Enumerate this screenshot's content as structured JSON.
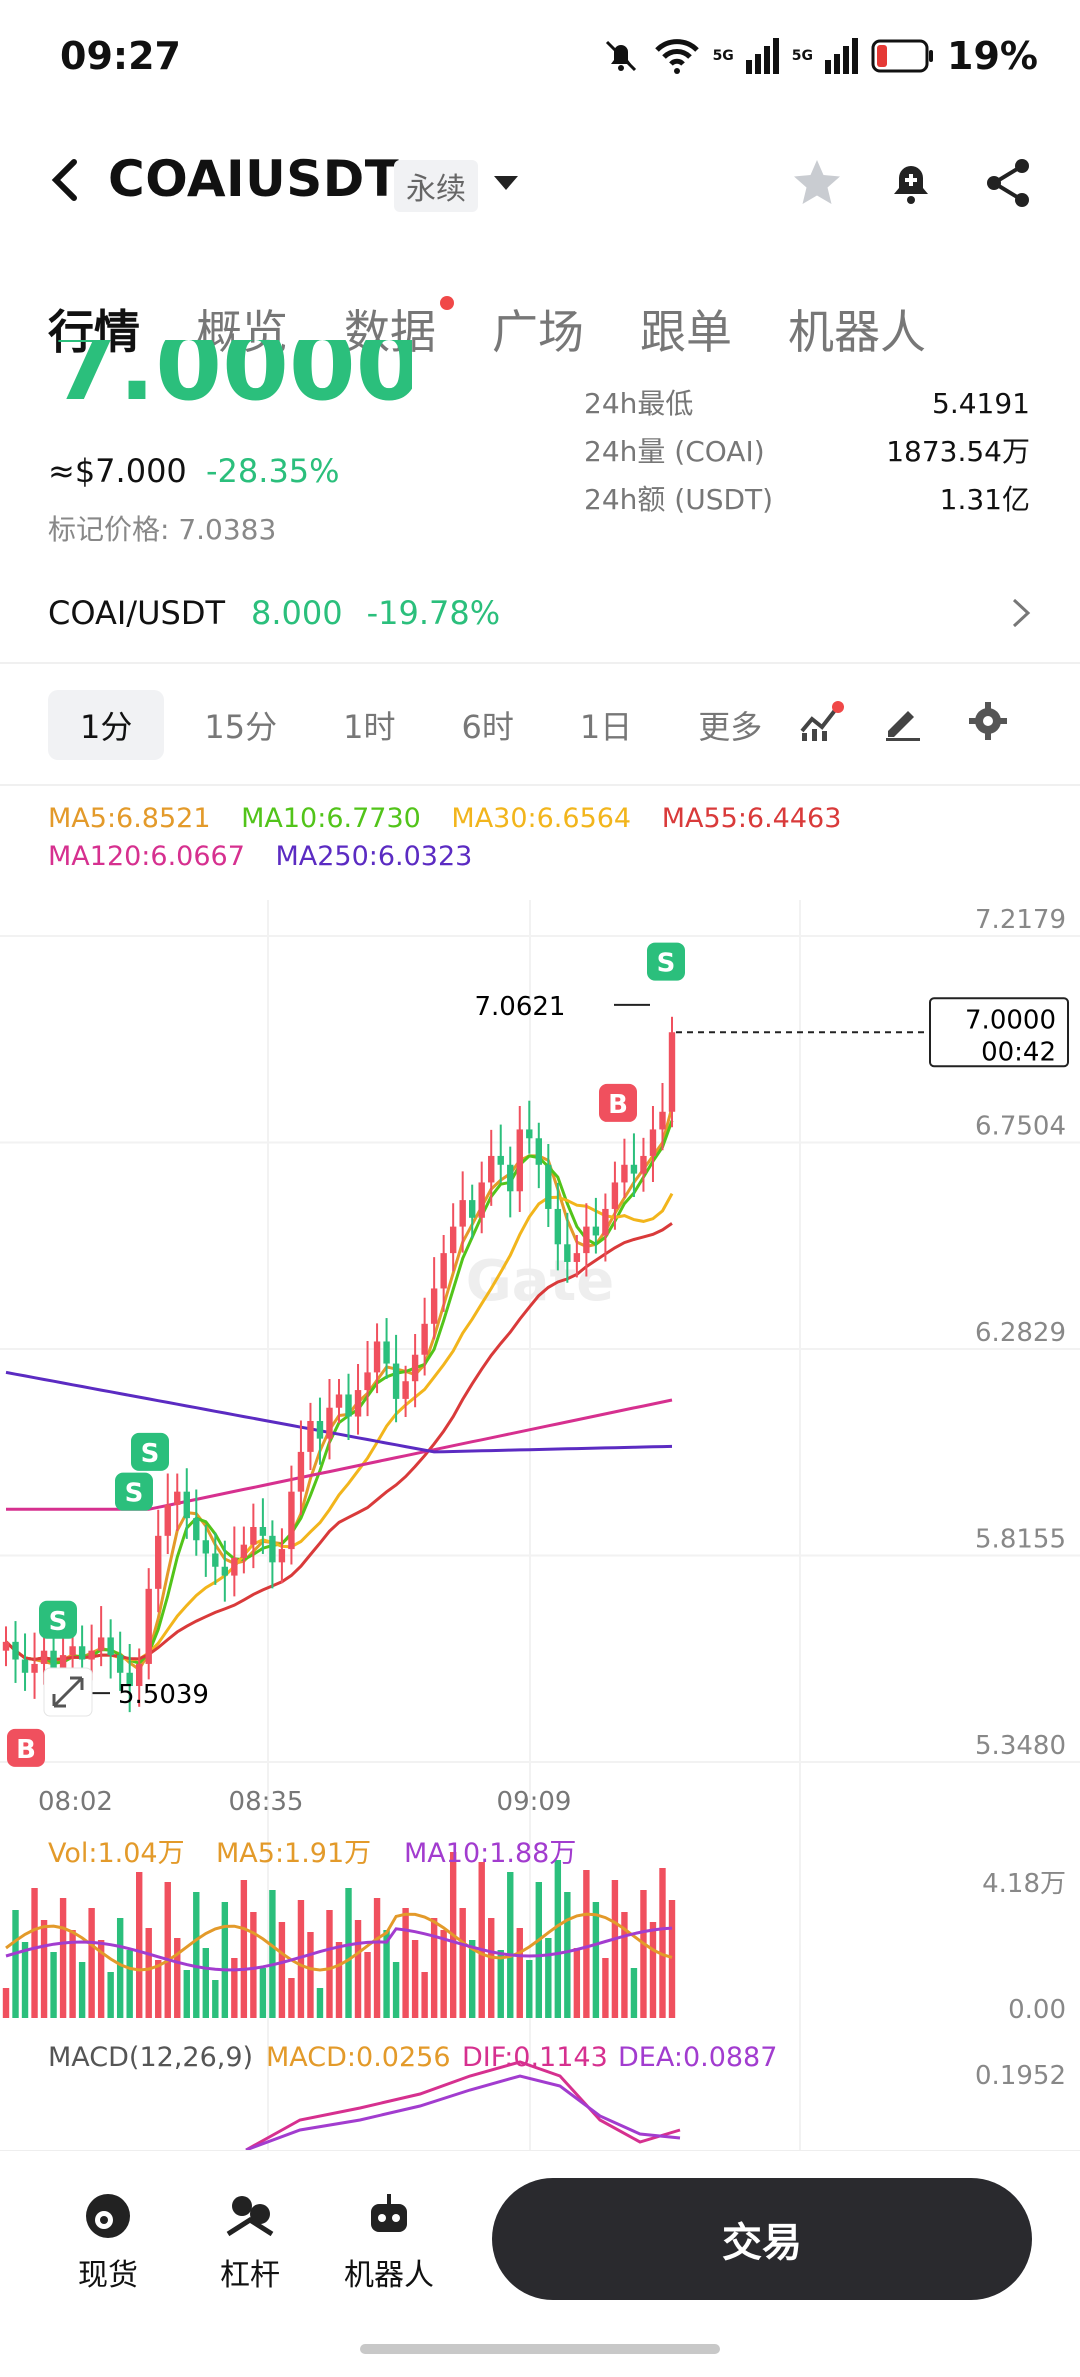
{
  "status": {
    "time": "09:27",
    "battery": "19%",
    "net1": "5G",
    "net2": "5G"
  },
  "header": {
    "title": "COAIUSDT",
    "tag": "永续"
  },
  "tabs": [
    {
      "label": "行情",
      "active": true
    },
    {
      "label": "概览"
    },
    {
      "label": "数据",
      "dot": true
    },
    {
      "label": "广场"
    },
    {
      "label": "跟单"
    },
    {
      "label": "机器人"
    }
  ],
  "price": {
    "last": "7.0000",
    "usd": "≈$7.000",
    "change": "-28.35%",
    "mark_label": "标记价格: 7.0383"
  },
  "stats": [
    {
      "label": "24h最低",
      "value": "5.4191"
    },
    {
      "label": "24h量 (COAI)",
      "value": "1873.54万"
    },
    {
      "label": "24h额 (USDT)",
      "value": "1.31亿"
    }
  ],
  "spot": {
    "pair": "COAI/USDT",
    "price": "8.000",
    "change": "-19.78%"
  },
  "timeframes": {
    "selected": "1分",
    "items": [
      "15分",
      "1时",
      "6时",
      "1日",
      "更多"
    ]
  },
  "ma_legend": [
    {
      "label": "MA5:6.8521",
      "color": "#e39a2a"
    },
    {
      "label": "MA10:6.7730",
      "color": "#52c41a"
    },
    {
      "label": "MA30:6.6564",
      "color": "#f2b51c"
    },
    {
      "label": "MA55:6.4463",
      "color": "#d93a3a"
    },
    {
      "label": "MA120:6.0667",
      "color": "#d6308f"
    },
    {
      "label": "MA250:6.0323",
      "color": "#5b2bc2"
    }
  ],
  "chart_data": {
    "type": "candlestick",
    "y_ticks": [
      "7.2179",
      "6.7504",
      "6.2829",
      "5.8155",
      "5.3480"
    ],
    "ylim": [
      5.348,
      7.2179
    ],
    "x_ticks": [
      "08:02",
      "08:35",
      "09:09"
    ],
    "last_price_label": "7.0000",
    "countdown": "00:42",
    "high_label": "7.0621",
    "low_label": "5.5039",
    "watermark": "Gate",
    "marks": [
      {
        "type": "S",
        "price": 7.16
      },
      {
        "type": "B",
        "price": 6.84
      },
      {
        "type": "S",
        "price": 6.05
      },
      {
        "type": "S",
        "price": 5.96
      },
      {
        "type": "S",
        "price": 5.67
      },
      {
        "type": "B",
        "price": 5.38
      }
    ],
    "close_series": [
      5.62,
      5.58,
      5.55,
      5.57,
      5.6,
      5.56,
      5.59,
      5.61,
      5.58,
      5.6,
      5.63,
      5.59,
      5.55,
      5.52,
      5.57,
      5.74,
      5.86,
      5.93,
      5.96,
      5.9,
      5.85,
      5.82,
      5.79,
      5.77,
      5.81,
      5.84,
      5.88,
      5.86,
      5.8,
      5.83,
      5.96,
      6.05,
      6.12,
      6.08,
      6.15,
      6.18,
      6.13,
      6.19,
      6.23,
      6.3,
      6.25,
      6.17,
      6.21,
      6.27,
      6.34,
      6.42,
      6.5,
      6.56,
      6.62,
      6.58,
      6.66,
      6.72,
      6.7,
      6.64,
      6.78,
      6.76,
      6.7,
      6.6,
      6.52,
      6.48,
      6.5,
      6.56,
      6.54,
      6.6,
      6.66,
      6.7,
      6.68,
      6.72,
      6.78,
      6.82,
      7.0
    ],
    "volume": {
      "title": "Vol:1.04万",
      "ma5": "MA5:1.91万",
      "ma10": "MA10:1.88万",
      "y_top": "4.18万",
      "y_bottom": "0.00"
    },
    "macd": {
      "title": "MACD(12,26,9)",
      "macd": "MACD:0.0256",
      "dif": "DIF:0.1143",
      "dea": "DEA:0.0887",
      "y_top": "0.1952"
    }
  },
  "bottom": {
    "spot": "现货",
    "margin": "杠杆",
    "robot": "机器人",
    "trade": "交易"
  },
  "colors": {
    "up": "#2bbf7c",
    "down": "#f0505e",
    "accent": "#2bbf7c"
  }
}
